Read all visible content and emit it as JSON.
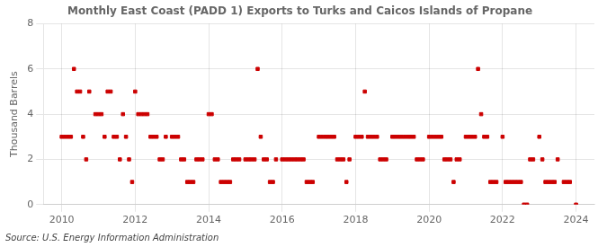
{
  "chart_data": {
    "type": "scatter",
    "title": "Monthly East Coast (PADD 1) Exports to Turks and Caicos Islands of Propane",
    "ylabel": "Thousand Barrels",
    "source": "Source: U.S. Energy Information Administration",
    "color": "#cc0000",
    "marker": "square",
    "grid": true,
    "xlim": [
      2009.5,
      2024.5
    ],
    "ylim": [
      0,
      8
    ],
    "xticks": [
      2010,
      2012,
      2014,
      2016,
      2018,
      2020,
      2022,
      2024
    ],
    "yticks": [
      0,
      2,
      4,
      6,
      8
    ],
    "x": [
      2010.0,
      2010.083,
      2010.167,
      2010.25,
      2010.333,
      2010.417,
      2010.5,
      2010.583,
      2010.667,
      2010.75,
      2010.917,
      2011.0,
      2011.083,
      2011.167,
      2011.25,
      2011.333,
      2011.417,
      2011.5,
      2011.583,
      2011.667,
      2011.75,
      2011.833,
      2011.917,
      2012.0,
      2012.083,
      2012.167,
      2012.25,
      2012.333,
      2012.417,
      2012.5,
      2012.583,
      2012.667,
      2012.75,
      2012.833,
      2013.0,
      2013.083,
      2013.167,
      2013.25,
      2013.333,
      2013.417,
      2013.5,
      2013.583,
      2013.667,
      2013.75,
      2013.833,
      2014.0,
      2014.083,
      2014.167,
      2014.25,
      2014.333,
      2014.417,
      2014.5,
      2014.583,
      2014.667,
      2014.75,
      2014.833,
      2015.0,
      2015.083,
      2015.167,
      2015.25,
      2015.333,
      2015.417,
      2015.5,
      2015.583,
      2015.667,
      2015.75,
      2015.833,
      2016.0,
      2016.083,
      2016.167,
      2016.25,
      2016.333,
      2016.417,
      2016.5,
      2016.583,
      2016.667,
      2016.75,
      2016.833,
      2017.0,
      2017.083,
      2017.167,
      2017.25,
      2017.333,
      2017.417,
      2017.5,
      2017.583,
      2017.667,
      2017.75,
      2017.833,
      2018.0,
      2018.083,
      2018.167,
      2018.25,
      2018.333,
      2018.417,
      2018.5,
      2018.583,
      2018.667,
      2018.75,
      2018.833,
      2019.0,
      2019.083,
      2019.167,
      2019.25,
      2019.333,
      2019.417,
      2019.5,
      2019.583,
      2019.667,
      2019.75,
      2019.833,
      2020.0,
      2020.083,
      2020.167,
      2020.25,
      2020.333,
      2020.417,
      2020.5,
      2020.583,
      2020.667,
      2020.75,
      2020.833,
      2021.0,
      2021.083,
      2021.167,
      2021.25,
      2021.333,
      2021.417,
      2021.5,
      2021.583,
      2021.667,
      2021.75,
      2021.833,
      2022.0,
      2022.083,
      2022.167,
      2022.25,
      2022.333,
      2022.417,
      2022.5,
      2022.583,
      2022.667,
      2022.75,
      2022.833,
      2023.0,
      2023.083,
      2023.167,
      2023.25,
      2023.333,
      2023.417,
      2023.5,
      2023.667,
      2023.75,
      2023.833,
      2024.0
    ],
    "values": [
      3,
      3,
      3,
      3,
      6,
      5,
      5,
      3,
      2,
      5,
      4,
      4,
      4,
      3,
      5,
      5,
      3,
      3,
      2,
      4,
      3,
      2,
      1,
      5,
      4,
      4,
      4,
      4,
      3,
      3,
      3,
      2,
      2,
      3,
      3,
      3,
      3,
      2,
      2,
      1,
      1,
      1,
      2,
      2,
      2,
      4,
      4,
      2,
      2,
      1,
      1,
      1,
      1,
      2,
      2,
      2,
      2,
      2,
      2,
      2,
      6,
      3,
      2,
      2,
      1,
      1,
      2,
      2,
      2,
      2,
      2,
      2,
      2,
      2,
      2,
      1,
      1,
      1,
      3,
      3,
      3,
      3,
      3,
      3,
      2,
      2,
      2,
      1,
      2,
      3,
      3,
      3,
      5,
      3,
      3,
      3,
      3,
      2,
      2,
      2,
      3,
      3,
      3,
      3,
      3,
      3,
      3,
      3,
      2,
      2,
      2,
      3,
      3,
      3,
      3,
      3,
      2,
      2,
      2,
      1,
      2,
      2,
      3,
      3,
      3,
      3,
      6,
      4,
      3,
      3,
      1,
      1,
      1,
      3,
      1,
      1,
      1,
      1,
      1,
      1,
      0,
      0,
      2,
      2,
      3,
      2,
      1,
      1,
      1,
      1,
      2,
      1,
      1,
      1,
      0
    ]
  }
}
